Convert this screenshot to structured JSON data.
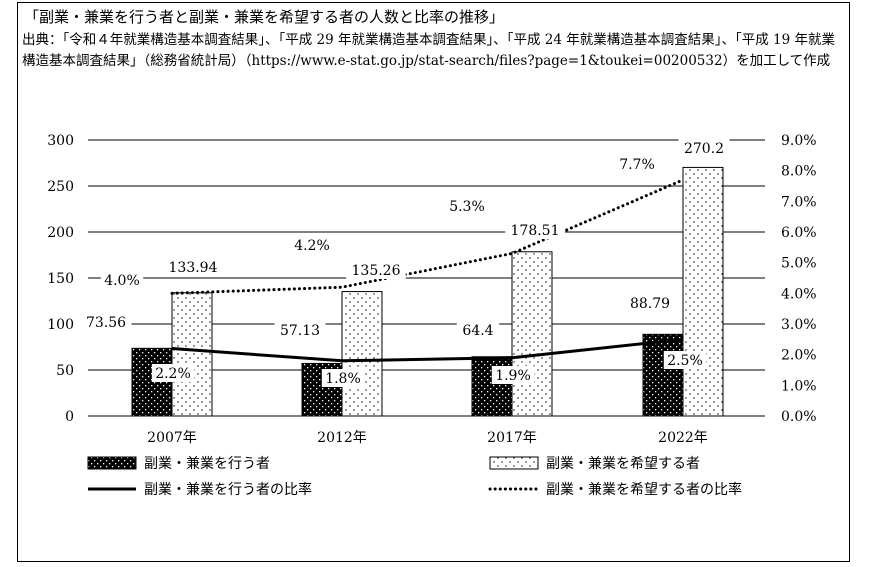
{
  "title": "「副業・兼業を行う者と副業・兼業を希望する者の人数と比率の推移」",
  "source": "出典：「令和４年就業構造基本調査結果」、「平成 29 年就業構造基本調査結果」、「平成 24 年就業構造基本調査結果」、「平成 19 年就業構造基本調査結果」（総務省統計局）（https://www.e-stat.go.jp/stat-search/files?page=1&toukei=00200532）を加工して作成",
  "chart_data": {
    "type": "bar",
    "categories": [
      "2007年",
      "2012年",
      "2017年",
      "2022年"
    ],
    "series": [
      {
        "name": "副業・兼業を行う者",
        "kind": "bar",
        "axis": "left",
        "values": [
          73.56,
          57.13,
          64.4,
          88.79
        ],
        "labels": [
          "73.56",
          "57.13",
          "64.4",
          "88.79"
        ]
      },
      {
        "name": "副業・兼業を希望する者",
        "kind": "bar",
        "axis": "left",
        "values": [
          133.94,
          135.26,
          178.51,
          270.2
        ],
        "labels": [
          "133.94",
          "135.26",
          "178.51",
          "270.2"
        ]
      },
      {
        "name": "副業・兼業を行う者の比率",
        "kind": "line",
        "axis": "right",
        "values": [
          2.2,
          1.8,
          1.9,
          2.5
        ],
        "labels": [
          "2.2%",
          "1.8%",
          "1.9%",
          "2.5%"
        ]
      },
      {
        "name": "副業・兼業を希望する者の比率",
        "kind": "line",
        "axis": "right",
        "values": [
          4.0,
          4.2,
          5.3,
          7.7
        ],
        "labels": [
          "4.0%",
          "4.2%",
          "5.3%",
          "7.7%"
        ]
      }
    ],
    "y_left": {
      "ylim": [
        0,
        300
      ],
      "ticks": [
        "0",
        "50",
        "100",
        "150",
        "200",
        "250",
        "300"
      ]
    },
    "y_right": {
      "ylim": [
        0,
        9
      ],
      "ticks": [
        "0.0%",
        "1.0%",
        "2.0%",
        "3.0%",
        "4.0%",
        "5.0%",
        "6.0%",
        "7.0%",
        "8.0%",
        "9.0%"
      ]
    },
    "grid": true,
    "legend": "bottom"
  }
}
